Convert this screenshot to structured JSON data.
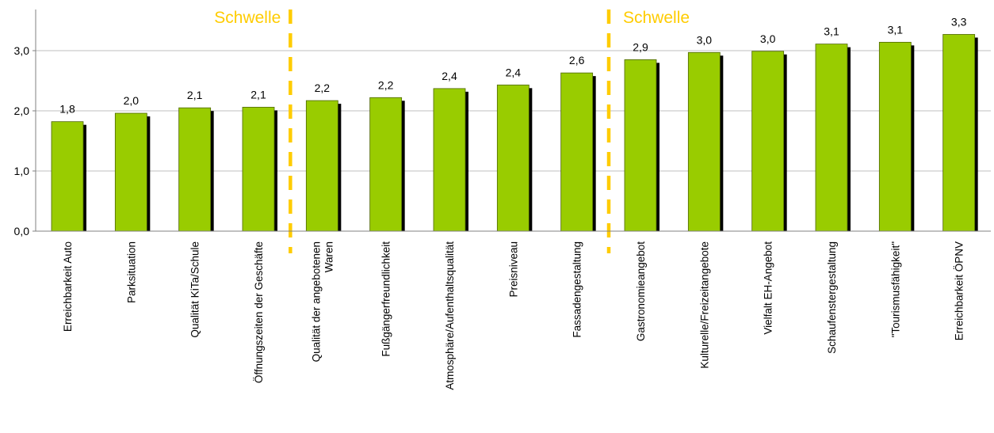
{
  "chart_data": {
    "type": "bar",
    "title": "",
    "xlabel": "",
    "ylabel": "",
    "ylim": [
      0,
      3.5
    ],
    "yticks": [
      "0,0",
      "1,0",
      "2,0",
      "3,0"
    ],
    "ytick_values": [
      0,
      1,
      2,
      3
    ],
    "grid": true,
    "legend": "none",
    "categories": [
      [
        "Erreichbarkeit Auto"
      ],
      [
        "Parksituation"
      ],
      [
        "Qualität KiTa/Schule"
      ],
      [
        "Öffnungszeiten der Geschäfte"
      ],
      [
        "Qualität der angebotenen",
        "Waren"
      ],
      [
        "Fußgängerfreundlichkeit"
      ],
      [
        "Atmosphäre/Aufenthaltsqualität"
      ],
      [
        "Preisniveau"
      ],
      [
        "Fassadengestaltung"
      ],
      [
        "Gastronomieangebot"
      ],
      [
        "Kulturelle/Freizeitangebote"
      ],
      [
        "Vielfalt EH-Angebot"
      ],
      [
        "Schaufenstergestaltung"
      ],
      [
        "\"Tourismusfähigkeit\""
      ],
      [
        "Erreichbarkeit ÖPNV"
      ]
    ],
    "values": [
      1.82,
      1.96,
      2.05,
      2.06,
      2.17,
      2.22,
      2.37,
      2.43,
      2.63,
      2.85,
      2.97,
      2.99,
      3.11,
      3.14,
      3.27
    ],
    "data_labels": [
      "1,8",
      "2,0",
      "2,1",
      "2,1",
      "2,2",
      "2,2",
      "2,4",
      "2,4",
      "2,6",
      "2,9",
      "3,0",
      "3,0",
      "3,1",
      "3,1",
      "3,3"
    ],
    "thresholds": [
      {
        "label": "Schwelle",
        "after_index": 3
      },
      {
        "label": "Schwelle",
        "after_index": 8
      }
    ],
    "colors": {
      "bar": "#99cc00",
      "bar_border": "#4d6600",
      "shadow": "#000000",
      "threshold": "#ffcc00",
      "grid": "#bfbfbf",
      "axis": "#808080"
    }
  }
}
